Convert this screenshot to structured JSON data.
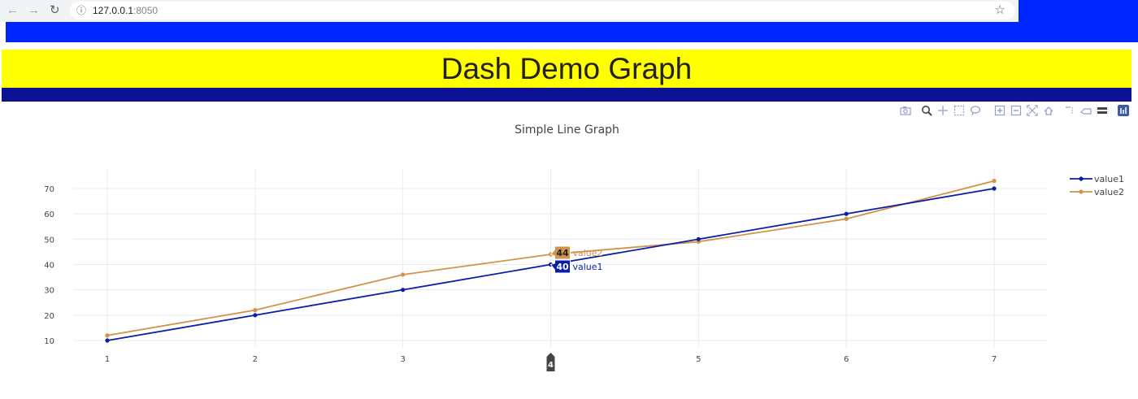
{
  "browser": {
    "url_host": "127.0.0.1",
    "url_port": ":8050",
    "back_icon": "back-arrow-icon",
    "forward_icon": "forward-arrow-icon",
    "reload_icon": "reload-icon",
    "bookmark_icon": "star-icon"
  },
  "colors": {
    "top_bar": "#0026ff",
    "banner": "#ffff00",
    "navy": "#0c1193",
    "value1": "#0a1fa8",
    "value2": "#d2924a"
  },
  "header": {
    "title": "Dash Demo Graph"
  },
  "modebar": {
    "buttons": [
      "camera-icon",
      "zoom-icon",
      "pan-icon",
      "box-select-icon",
      "lasso-select-icon",
      "zoom-in-icon",
      "zoom-out-icon",
      "autoscale-icon",
      "reset-axes-icon",
      "spike-lines-icon",
      "hover-closest-icon",
      "hover-compare-icon",
      "plotly-logo-icon"
    ]
  },
  "chart_data": {
    "type": "line",
    "title": "Simple Line Graph",
    "x": [
      1,
      2,
      3,
      4,
      5,
      6,
      7
    ],
    "xticks": [
      "1",
      "2",
      "3",
      "4",
      "5",
      "6",
      "7"
    ],
    "yticks": [
      "10",
      "20",
      "30",
      "40",
      "50",
      "60",
      "70"
    ],
    "ylim": [
      7,
      77
    ],
    "xlim": [
      0.95,
      7.35
    ],
    "grid": true,
    "legend_position": "top-right",
    "series": [
      {
        "name": "value1",
        "values": [
          10,
          20,
          30,
          40,
          50,
          60,
          70
        ],
        "color": "#0a1fa8"
      },
      {
        "name": "value2",
        "values": [
          12,
          22,
          36,
          44,
          49,
          58,
          73
        ],
        "color": "#d2924a"
      }
    ],
    "hover": {
      "x_label": "4",
      "items": [
        {
          "series": "value2",
          "value_label": "44",
          "name_label": "value2"
        },
        {
          "series": "value1",
          "value_label": "40",
          "name_label": "value1"
        }
      ]
    }
  }
}
